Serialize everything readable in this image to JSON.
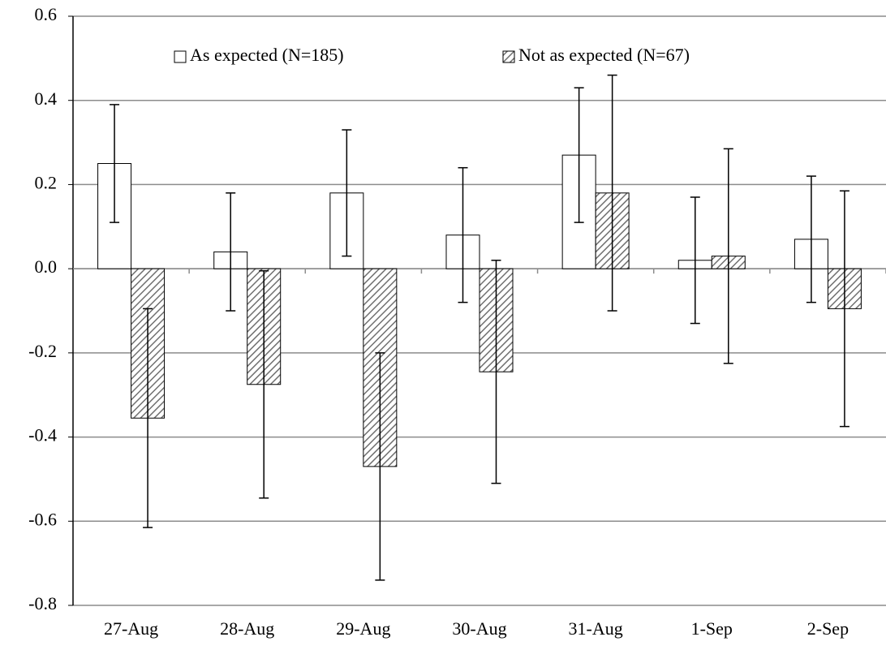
{
  "chart_data": {
    "type": "bar",
    "categories": [
      "27-Aug",
      "28-Aug",
      "29-Aug",
      "30-Aug",
      "31-Aug",
      "1-Sep",
      "2-Sep"
    ],
    "series": [
      {
        "name": "As expected (N=185)",
        "color": "#ffffff",
        "hatch": false,
        "values": [
          0.25,
          0.04,
          0.18,
          0.08,
          0.27,
          0.02,
          0.07
        ],
        "errors": [
          0.14,
          0.14,
          0.15,
          0.16,
          0.16,
          0.15,
          0.15
        ]
      },
      {
        "name": "Not as expected (N=67)",
        "color": "#707070",
        "hatch": true,
        "values": [
          -0.355,
          -0.275,
          -0.47,
          -0.245,
          0.18,
          0.03,
          -0.095
        ],
        "errors": [
          0.26,
          0.27,
          0.27,
          0.265,
          0.28,
          0.255,
          0.28
        ]
      }
    ],
    "ylim": [
      -0.8,
      0.6
    ],
    "yticks": [
      -0.8,
      -0.6,
      -0.4,
      -0.2,
      {
        "value": 0,
        "label": "0.0"
      },
      0.2,
      0.4,
      0.6
    ],
    "grid": true,
    "legend": "top"
  }
}
